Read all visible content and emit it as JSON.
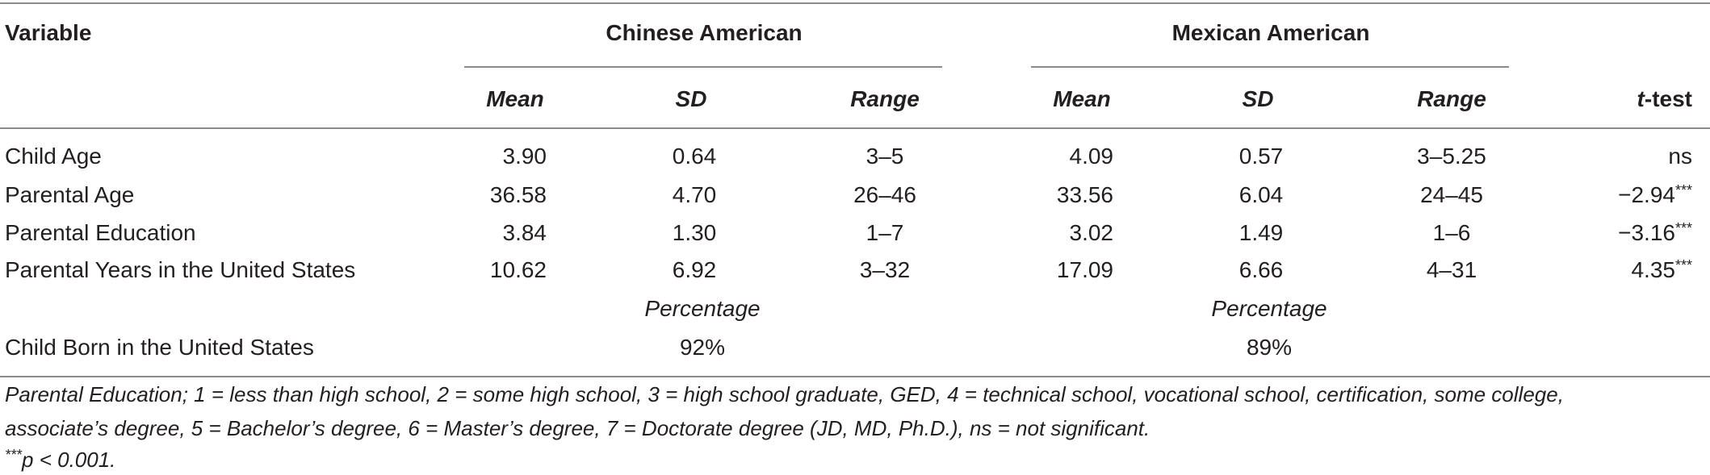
{
  "header": {
    "variable": "Variable",
    "group1": "Chinese American",
    "group2": "Mexican American",
    "mean": "Mean",
    "sd": "SD",
    "range": "Range",
    "ttest_t": "t",
    "ttest_rest": "-test"
  },
  "rows": [
    {
      "label": "Child Age",
      "cm": "3.90",
      "csd": "0.64",
      "cr": "3–5",
      "mm": "4.09",
      "msd": "0.57",
      "mr": "3–5.25",
      "t": "ns",
      "sig": ""
    },
    {
      "label": "Parental Age",
      "cm": "36.58",
      "csd": "4.70",
      "cr": "26–46",
      "mm": "33.56",
      "msd": "6.04",
      "mr": "24–45",
      "t": "−2.94",
      "sig": "***"
    },
    {
      "label": "Parental Education",
      "cm": "3.84",
      "csd": "1.30",
      "cr": "1–7",
      "mm": "3.02",
      "msd": "1.49",
      "mr": "1–6",
      "t": "−3.16",
      "sig": "***"
    },
    {
      "label": "Parental Years in the United States",
      "cm": "10.62",
      "csd": "6.92",
      "cr": "3–32",
      "mm": "17.09",
      "msd": "6.66",
      "mr": "4–31",
      "t": "4.35",
      "sig": "***"
    }
  ],
  "percentage": {
    "label1": "Percentage",
    "label2": "Percentage"
  },
  "born": {
    "label": "Child Born in the United States",
    "c": "92%",
    "m": "89%"
  },
  "notes": {
    "line1": "Parental Education; 1 = less than high school, 2 = some high school, 3 = high school graduate, GED, 4 = technical school, vocational school, certification, some college,",
    "line2": "associate’s degree, 5 = Bachelor’s degree, 6 = Master’s degree, 7 = Doctorate degree (JD, MD, Ph.D.), ns = not significant.",
    "line3_sig": "***",
    "line3_rest": "p < 0.001."
  }
}
